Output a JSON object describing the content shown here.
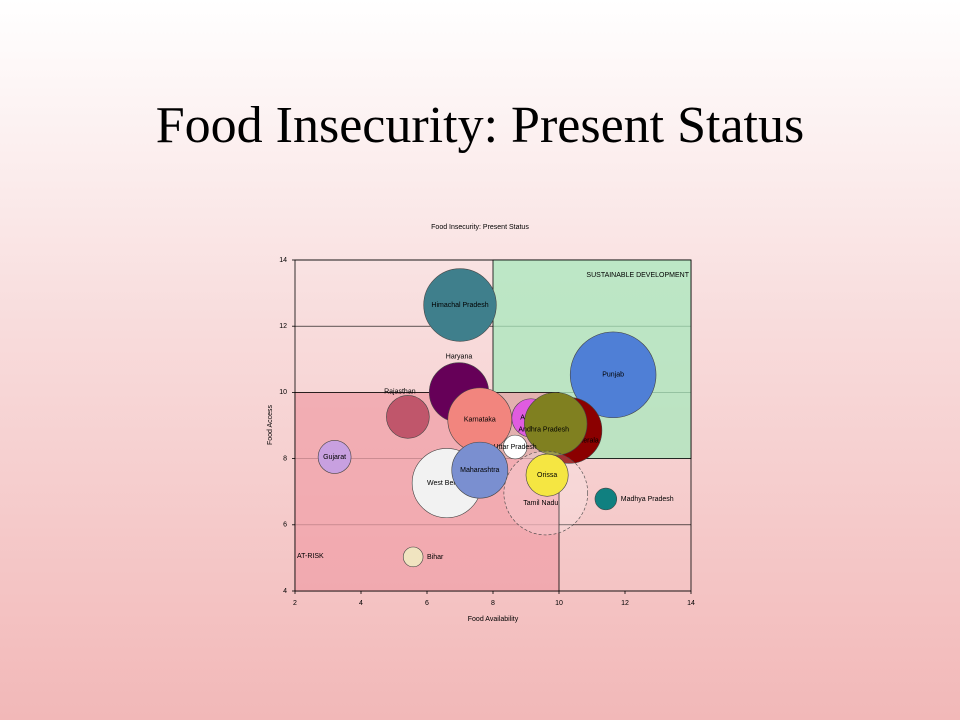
{
  "slide_title": "Food Insecurity: Present Status",
  "chart_data": {
    "type": "bubble",
    "title": "Food Insecurity: Present Status",
    "x_label": "Food Availability",
    "y_label": "Food Access",
    "xlim": [
      2,
      14
    ],
    "xticks": [
      2,
      4,
      6,
      8,
      10,
      12,
      14
    ],
    "ylim": [
      4,
      14
    ],
    "yticks": [
      4,
      6,
      8,
      10,
      12,
      14
    ],
    "grid": true,
    "regions": [
      {
        "label": "SUSTAINABLE DEVELOPMENT",
        "x": [
          8,
          14
        ],
        "y": [
          8,
          14
        ],
        "color": "#a8e8bc"
      },
      {
        "label": "AT-RISK",
        "x": [
          2,
          10
        ],
        "y": [
          4,
          10
        ],
        "color": "#f0a0a8"
      }
    ],
    "categories": [
      "Himachal Pradesh",
      "Punjab",
      "Haryana",
      "Rajasthan",
      "Karnataka",
      "Assam",
      "Kerala",
      "Andhra Pradesh",
      "Uttar Pradesh",
      "Gujarat",
      "West Bengal",
      "Maharashtra",
      "Tamil Nadu",
      "Orissa",
      "Madhya Pradesh",
      "Bihar"
    ],
    "x": [
      7.0,
      11.64,
      6.97,
      5.42,
      7.6,
      9.15,
      10.3,
      9.9,
      8.67,
      3.2,
      6.6,
      7.6,
      9.6,
      9.64,
      11.42,
      5.58
    ],
    "values": [
      12.64,
      10.53,
      10.0,
      9.26,
      9.17,
      9.23,
      8.85,
      9.05,
      8.35,
      8.05,
      7.26,
      7.65,
      6.96,
      7.5,
      6.78,
      5.03
    ],
    "sizes": [
      1.1,
      1.3,
      0.9,
      0.65,
      0.97,
      0.58,
      1.0,
      0.95,
      0.36,
      0.5,
      1.05,
      0.85,
      1.27,
      0.64,
      0.33,
      0.3
    ],
    "colors": [
      "#3f7f8c",
      "#4f7fd6",
      "#660058",
      "#c0566b",
      "#f2857e",
      "#e05ce0",
      "#8b0000",
      "#808020",
      "#ffffff",
      "#c8a0e0",
      "#f2f2f2",
      "#7a8fd0",
      "#ffffff",
      "#f5e642",
      "#108080",
      "#f0e4c0"
    ]
  }
}
